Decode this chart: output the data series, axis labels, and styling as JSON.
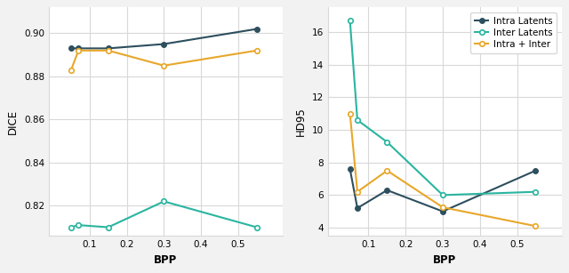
{
  "bpp": [
    0.05,
    0.07,
    0.15,
    0.3,
    0.55
  ],
  "dice_intra": [
    0.893,
    0.893,
    0.893,
    0.895,
    0.902
  ],
  "dice_inter": [
    0.81,
    0.811,
    0.81,
    0.822,
    0.81
  ],
  "dice_intra_inter": [
    0.883,
    0.892,
    0.892,
    0.885,
    0.892
  ],
  "hd95_intra": [
    7.6,
    5.2,
    6.3,
    5.0,
    7.5
  ],
  "hd95_inter": [
    16.7,
    10.6,
    9.25,
    6.0,
    6.2
  ],
  "hd95_intra_inter": [
    11.0,
    6.2,
    7.5,
    5.25,
    4.1
  ],
  "color_intra": "#2d4f5e",
  "color_inter": "#2ab5a0",
  "color_intra_inter": "#e8a72a",
  "label_intra": "Intra Latents",
  "label_inter": "Inter Latents",
  "label_intra_inter": "Intra + Inter",
  "xlabel": "BPP",
  "ylabel_left": "DICE",
  "ylabel_right": "HD95",
  "dice_ylim": [
    0.806,
    0.912
  ],
  "hd95_ylim": [
    3.5,
    17.5
  ],
  "dice_yticks": [
    0.82,
    0.84,
    0.86,
    0.88,
    0.9
  ],
  "hd95_yticks": [
    4,
    6,
    8,
    10,
    12,
    14,
    16
  ],
  "fig_bg": "#f2f2f2",
  "ax_bg": "#ffffff",
  "grid_color": "#d8d8d8",
  "marker": "o",
  "markersize": 4,
  "linewidth": 1.5,
  "xticks": [
    0.1,
    0.2,
    0.3,
    0.4,
    0.5
  ],
  "xlim": [
    -0.01,
    0.62
  ]
}
